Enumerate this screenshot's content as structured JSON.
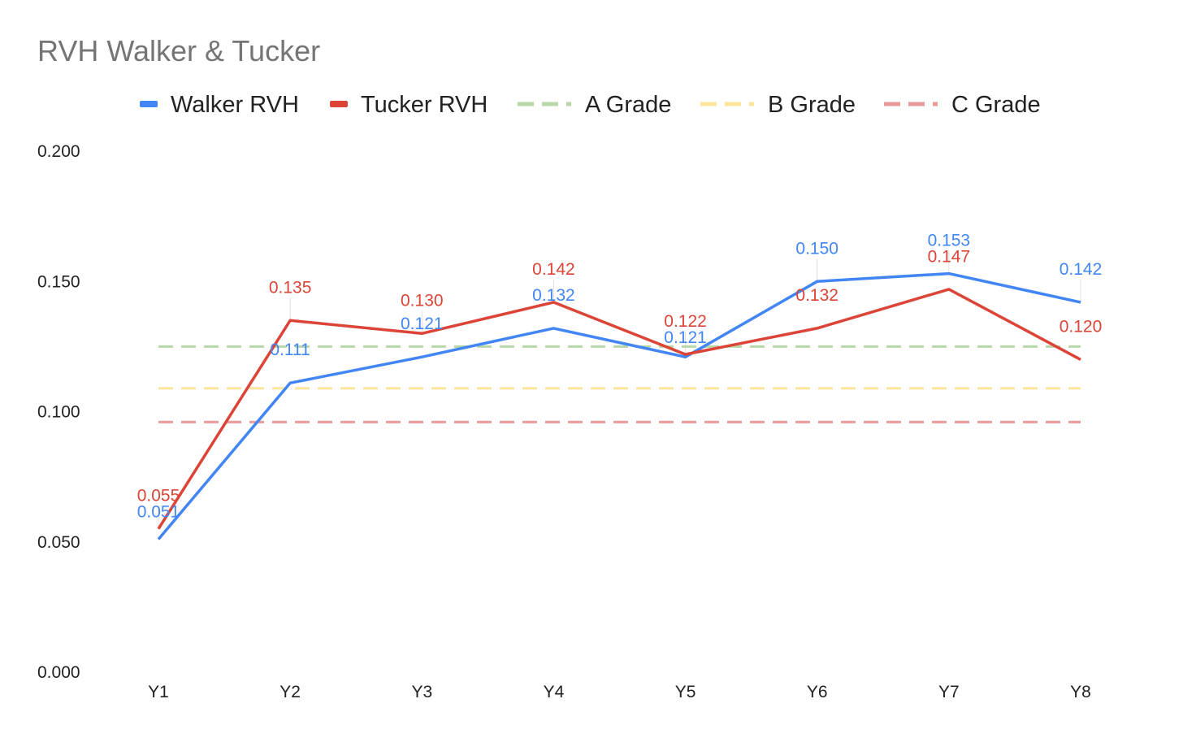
{
  "chart_data": {
    "type": "line",
    "title": "RVH Walker & Tucker",
    "xlabel": "",
    "ylabel": "",
    "categories": [
      "Y1",
      "Y2",
      "Y3",
      "Y4",
      "Y5",
      "Y6",
      "Y7",
      "Y8"
    ],
    "ylim": [
      0,
      0.2
    ],
    "yticks": [
      "0.000",
      "0.050",
      "0.100",
      "0.150",
      "0.200"
    ],
    "grid": false,
    "legend_position": "top",
    "series": [
      {
        "name": "Walker RVH",
        "color": "#4285f4",
        "style": "solid",
        "values": [
          0.051,
          0.111,
          0.121,
          0.132,
          0.121,
          0.15,
          0.153,
          0.142
        ],
        "labels": [
          "0.051",
          "0.111",
          "0.121",
          "0.132",
          "0.121",
          "0.150",
          "0.153",
          "0.142"
        ]
      },
      {
        "name": "Tucker RVH",
        "color": "#db4437",
        "style": "solid",
        "values": [
          0.055,
          0.135,
          0.13,
          0.142,
          0.122,
          0.132,
          0.147,
          0.12
        ],
        "labels": [
          "0.055",
          "0.135",
          "0.130",
          "0.142",
          "0.122",
          "0.132",
          "0.147",
          "0.120"
        ]
      },
      {
        "name": "A Grade",
        "color": "#b7d7a8",
        "style": "dashed",
        "values": [
          0.125,
          0.125,
          0.125,
          0.125,
          0.125,
          0.125,
          0.125,
          0.125
        ]
      },
      {
        "name": "B Grade",
        "color": "#ffe599",
        "style": "dashed",
        "values": [
          0.109,
          0.109,
          0.109,
          0.109,
          0.109,
          0.109,
          0.109,
          0.109
        ]
      },
      {
        "name": "C Grade",
        "color": "#ea9999",
        "style": "dashed",
        "values": [
          0.096,
          0.096,
          0.096,
          0.096,
          0.096,
          0.096,
          0.096,
          0.096
        ]
      }
    ]
  }
}
